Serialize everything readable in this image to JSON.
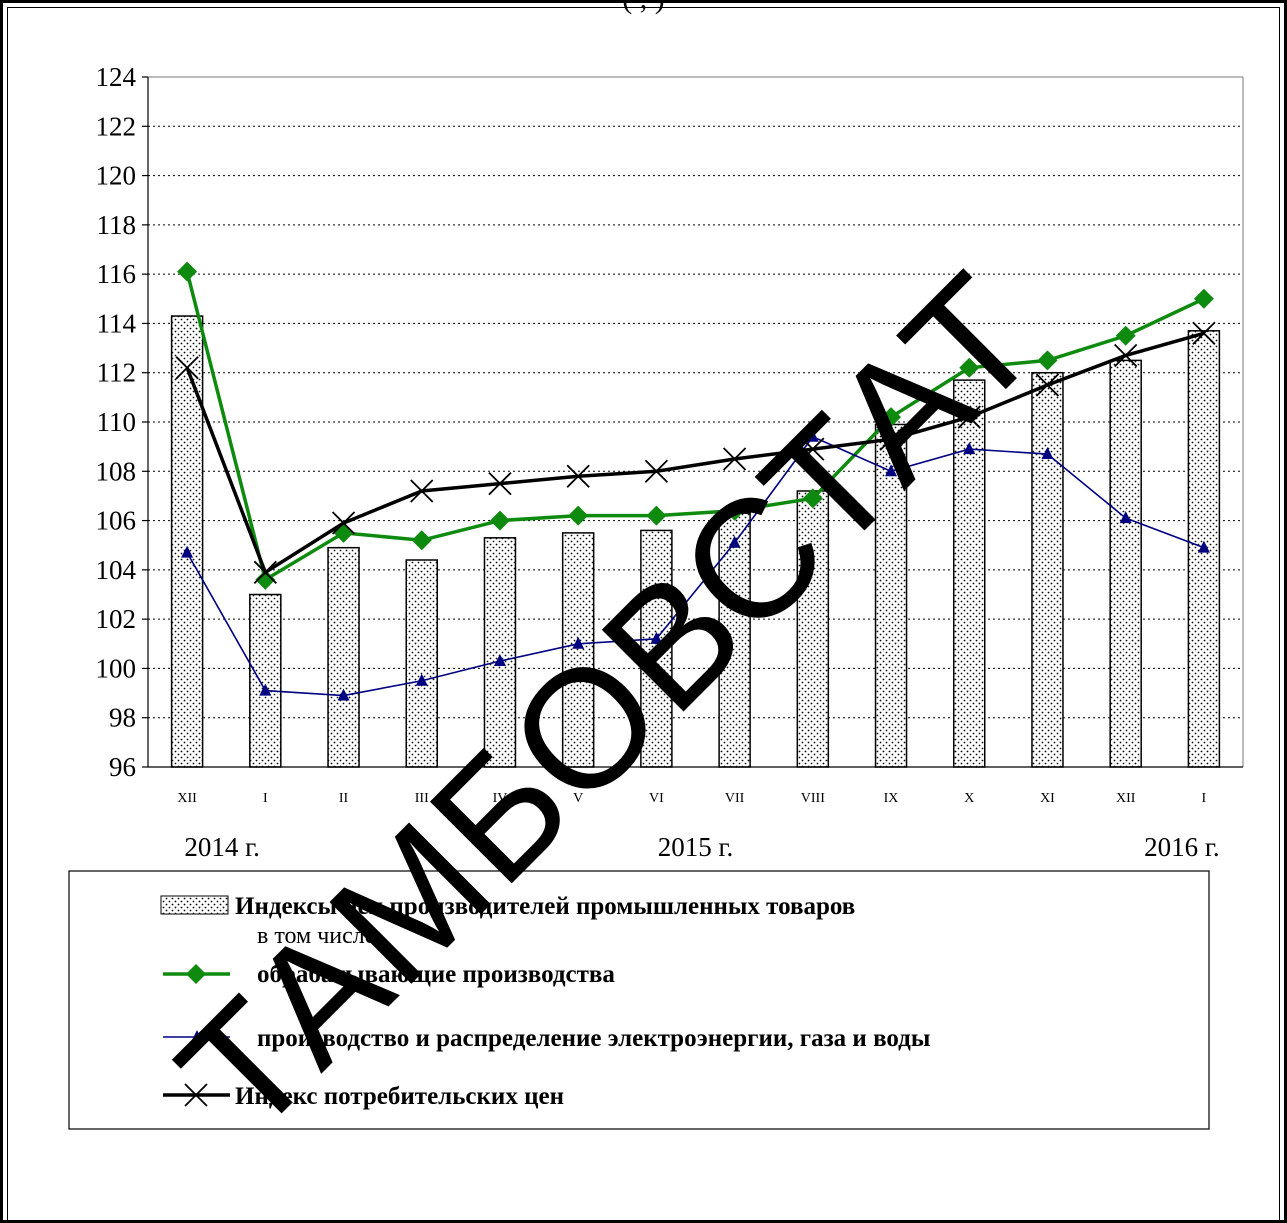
{
  "header": {
    "partial_text": "(             ,                                         )"
  },
  "chart_data": {
    "type": "bar",
    "categories": [
      "XII",
      "I",
      "II",
      "III",
      "IV",
      "V",
      "VI",
      "VII",
      "VIII",
      "IX",
      "X",
      "XI",
      "XII",
      "I"
    ],
    "year_labels": [
      "2014 г.",
      "2015 г.",
      "2016 г."
    ],
    "ylim": [
      96,
      124
    ],
    "yticks": [
      96,
      98,
      100,
      102,
      104,
      106,
      108,
      110,
      112,
      114,
      116,
      118,
      120,
      122,
      124
    ],
    "grid": true,
    "series": [
      {
        "name": "Индексы цен производителей промышленных товаров",
        "kind": "bar",
        "color": "#ffffff",
        "values": [
          114.3,
          103.0,
          104.9,
          104.4,
          105.3,
          105.5,
          105.6,
          106.3,
          107.2,
          109.9,
          111.7,
          112.0,
          112.5,
          113.7
        ]
      },
      {
        "name": "обрабатывающие производства",
        "kind": "line",
        "marker": "diamond",
        "color": "#0e8a0e",
        "values": [
          116.1,
          103.6,
          105.5,
          105.2,
          106.0,
          106.2,
          106.2,
          106.4,
          106.9,
          110.2,
          112.2,
          112.5,
          113.5,
          115.0
        ]
      },
      {
        "name": "производство и распределение электроэнергии, газа и воды",
        "kind": "line",
        "marker": "triangle",
        "color": "#000080",
        "values": [
          104.7,
          99.1,
          98.9,
          99.5,
          100.3,
          101.0,
          101.2,
          105.1,
          109.4,
          108.0,
          108.9,
          108.7,
          106.1,
          104.9
        ]
      },
      {
        "name": "Индекс потребительских цен",
        "kind": "line",
        "marker": "x",
        "color": "#000000",
        "values": [
          112.2,
          103.9,
          105.9,
          107.2,
          107.5,
          107.8,
          108.0,
          108.5,
          108.9,
          109.3,
          110.2,
          111.5,
          112.7,
          113.6
        ]
      }
    ],
    "legend_subtitle": "в том числе:"
  },
  "watermark": {
    "text": "ТАМБОВСТАТ"
  },
  "colors": {
    "grid": "#000000",
    "frame": "#000000"
  }
}
